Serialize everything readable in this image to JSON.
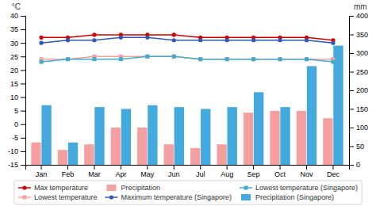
{
  "chart_data": {
    "type": "line",
    "categories": [
      "Jan",
      "Feb",
      "Mar",
      "Apr",
      "May",
      "Jun",
      "Jul",
      "Aug",
      "Sep",
      "Oct",
      "Nov",
      "Dec"
    ],
    "y_label": "°C",
    "y2_label": "mm",
    "ylim": [
      -15,
      40
    ],
    "yticks": [
      -15,
      -10,
      -5,
      0,
      5,
      10,
      15,
      20,
      25,
      30,
      35,
      40
    ],
    "y2lim": [
      0,
      400
    ],
    "y2ticks": [
      0,
      50,
      100,
      150,
      200,
      250,
      300,
      350,
      400
    ],
    "grid": false,
    "legend": "bottom",
    "series": [
      {
        "name": "Max temperature",
        "type": "line",
        "marker": "circle",
        "color": "#cc0000",
        "values": [
          32,
          32,
          33,
          33,
          33,
          33,
          32,
          32,
          32,
          32,
          32,
          31
        ]
      },
      {
        "name": "Lowest temperature",
        "type": "line",
        "marker": "square",
        "color": "#f4a0a0",
        "values": [
          24,
          24,
          25,
          25,
          25,
          25,
          24,
          24,
          24,
          24,
          24,
          24
        ]
      },
      {
        "name": "Precipitation",
        "type": "bar",
        "axis": "y2",
        "color": "#f4a0a0",
        "values": [
          60,
          40,
          55,
          100,
          100,
          55,
          45,
          55,
          140,
          145,
          145,
          125
        ]
      },
      {
        "name": "Maximum temperature (Singapore)",
        "type": "line",
        "marker": "circle",
        "color": "#3355bb",
        "values": [
          30,
          31,
          31,
          32,
          32,
          31,
          31,
          31,
          31,
          31,
          31,
          30
        ]
      },
      {
        "name": "Lowest temperature (Singapore)",
        "type": "line",
        "marker": "square",
        "color": "#44aacc",
        "values": [
          23,
          24,
          24,
          24,
          25,
          25,
          24,
          24,
          24,
          24,
          24,
          23
        ]
      },
      {
        "name": "Precipitation (Singapore)",
        "type": "bar",
        "axis": "y2",
        "color": "#44aadd",
        "values": [
          160,
          60,
          155,
          150,
          160,
          155,
          150,
          155,
          195,
          155,
          265,
          320
        ]
      }
    ]
  }
}
